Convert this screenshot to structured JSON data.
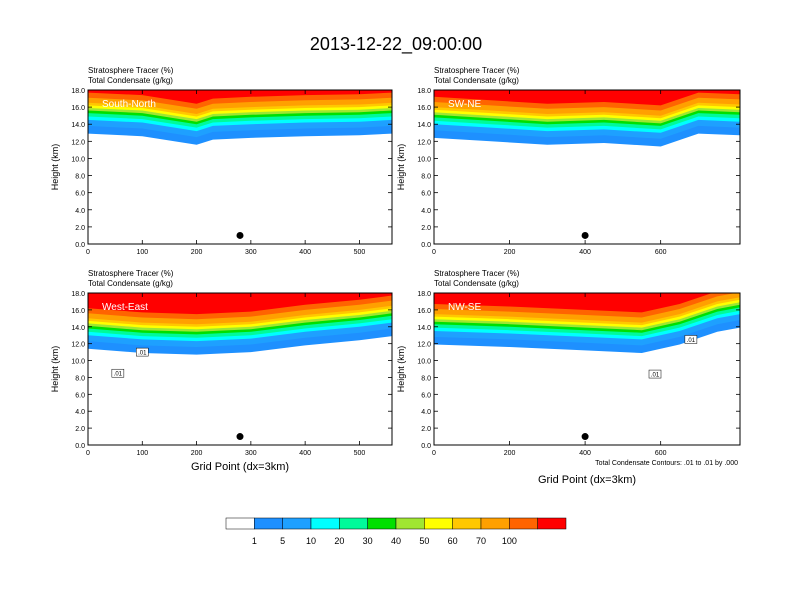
{
  "title": "2013-12-22_09:00:00",
  "panel_header": {
    "tracer": "Stratosphere Tracer",
    "tracer_unit": "(%)",
    "condensate": "Total Condensate",
    "condensate_unit": "(g/kg)"
  },
  "ylabel": "Height (km)",
  "xlabel": "Grid Point (dx=3km)",
  "contour_note": "Total Condensate Contours: .01 to .01 by .000",
  "contour_label": ".01",
  "colorbar": {
    "levels": [
      "1",
      "5",
      "10",
      "20",
      "30",
      "40",
      "50",
      "60",
      "70",
      "100"
    ],
    "colors": [
      "#ffffff",
      "#1e90ff",
      "#1ea0ff",
      "#00ffff",
      "#00fa9a",
      "#00e000",
      "#a0e632",
      "#ffff00",
      "#ffc800",
      "#ffa000",
      "#ff6400",
      "#ff0000"
    ]
  },
  "chart_data": [
    {
      "type": "heatmap",
      "name": "South-North",
      "xlabel": "",
      "ylabel": "Height (km)",
      "xlim": [
        0,
        560
      ],
      "ylim": [
        0,
        18
      ],
      "xticks": [
        0,
        100,
        200,
        300,
        400,
        500
      ],
      "yticks": [
        0,
        2,
        4,
        6,
        8,
        10,
        12,
        14,
        16,
        18
      ],
      "tropopause_km": [
        [
          0,
          14.5
        ],
        [
          100,
          14.2
        ],
        [
          200,
          13.2
        ],
        [
          230,
          13.8
        ],
        [
          300,
          14.0
        ],
        [
          400,
          14.2
        ],
        [
          500,
          14.3
        ],
        [
          560,
          14.5
        ]
      ],
      "marker_x": 280,
      "contour_labels": []
    },
    {
      "type": "heatmap",
      "name": "SW-NE",
      "xlabel": "",
      "ylabel": "Height (km)",
      "xlim": [
        0,
        810
      ],
      "ylim": [
        0,
        18
      ],
      "xticks": [
        0,
        200,
        400,
        600
      ],
      "yticks": [
        0,
        2,
        4,
        6,
        8,
        10,
        12,
        14,
        16,
        18
      ],
      "tropopause_km": [
        [
          0,
          14.0
        ],
        [
          150,
          13.6
        ],
        [
          300,
          13.2
        ],
        [
          450,
          13.4
        ],
        [
          600,
          13.0
        ],
        [
          700,
          14.5
        ],
        [
          810,
          14.3
        ]
      ],
      "marker_x": 400,
      "contour_labels": []
    },
    {
      "type": "heatmap",
      "name": "West-East",
      "xlabel": "Grid Point (dx=3km)",
      "ylabel": "Height (km)",
      "xlim": [
        0,
        560
      ],
      "ylim": [
        0,
        18
      ],
      "xticks": [
        0,
        100,
        200,
        300,
        400,
        500
      ],
      "yticks": [
        0,
        2,
        4,
        6,
        8,
        10,
        12,
        14,
        16,
        18
      ],
      "tropopause_km": [
        [
          0,
          13.0
        ],
        [
          100,
          12.5
        ],
        [
          200,
          12.3
        ],
        [
          300,
          12.6
        ],
        [
          400,
          13.4
        ],
        [
          500,
          14.0
        ],
        [
          560,
          14.5
        ]
      ],
      "marker_x": 280,
      "contour_labels": [
        {
          "x": 100,
          "y": 11
        },
        {
          "x": 55,
          "y": 8.5
        }
      ]
    },
    {
      "type": "heatmap",
      "name": "NW-SE",
      "xlabel": "Grid Point (dx=3km)",
      "ylabel": "Height (km)",
      "xlim": [
        0,
        810
      ],
      "ylim": [
        0,
        18
      ],
      "xticks": [
        0,
        200,
        400,
        600
      ],
      "yticks": [
        0,
        2,
        4,
        6,
        8,
        10,
        12,
        14,
        16,
        18
      ],
      "tropopause_km": [
        [
          0,
          13.5
        ],
        [
          200,
          13.2
        ],
        [
          400,
          12.8
        ],
        [
          550,
          12.5
        ],
        [
          650,
          13.5
        ],
        [
          750,
          15.0
        ],
        [
          810,
          15.5
        ]
      ],
      "marker_x": 400,
      "contour_labels": [
        {
          "x": 680,
          "y": 12.5
        },
        {
          "x": 585,
          "y": 8.4
        }
      ]
    }
  ]
}
